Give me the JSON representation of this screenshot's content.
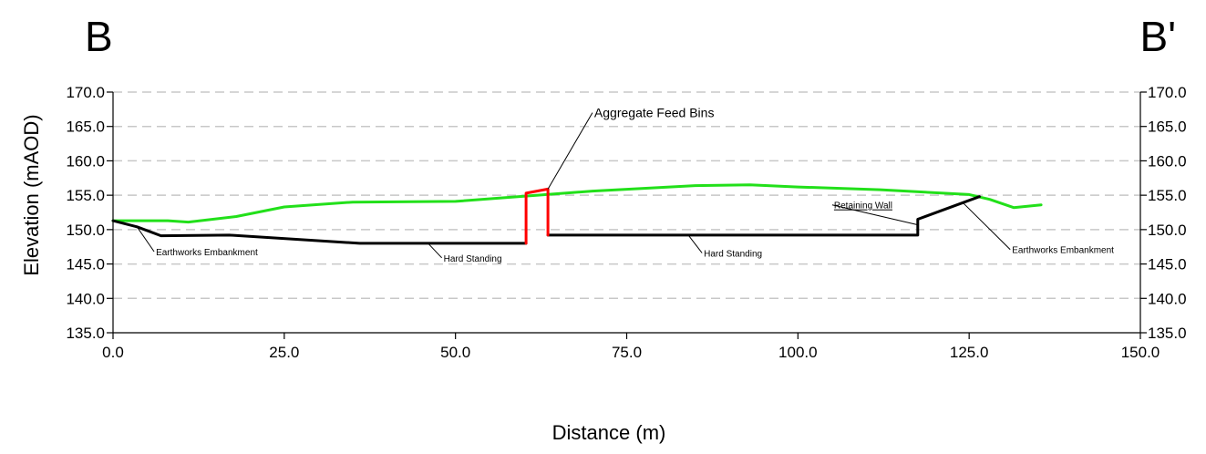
{
  "section": {
    "start_label": "B",
    "end_label": "B'"
  },
  "chart_data": {
    "type": "line",
    "xlabel": "Distance (m)",
    "ylabel": "Elevation (mAOD)",
    "xlim": [
      0,
      150
    ],
    "ylim": [
      135,
      170
    ],
    "x_ticks": [
      "0.0",
      "25.0",
      "50.0",
      "75.0",
      "100.0",
      "125.0",
      "150.0"
    ],
    "y_ticks": [
      "135.0",
      "140.0",
      "145.0",
      "150.0",
      "155.0",
      "160.0",
      "165.0",
      "170.0"
    ],
    "grid": "horizontal dashed",
    "series": [
      {
        "color": "#22e01a",
        "x": [
          0,
          8,
          11,
          18,
          25,
          35,
          50,
          62,
          70,
          85,
          93,
          100,
          112,
          125,
          128,
          131.5,
          135.5
        ],
        "y": [
          151.3,
          151.3,
          151.1,
          151.9,
          153.3,
          154.0,
          154.1,
          155.0,
          155.6,
          156.4,
          156.5,
          156.2,
          155.8,
          155.1,
          154.4,
          153.2,
          153.6
        ]
      },
      {
        "color": "#000000",
        "x": [
          0,
          3.5,
          7,
          17,
          36,
          60.3
        ],
        "y": [
          151.3,
          150.4,
          149.1,
          149.2,
          148.0,
          148.0
        ]
      },
      {
        "color": "#000000",
        "x": [
          63.5,
          117.5,
          117.5,
          126.5
        ],
        "y": [
          149.2,
          149.2,
          151.5,
          154.8
        ]
      },
      {
        "color": "#ff0000",
        "x": [
          60.3,
          60.3,
          63.5,
          63.5
        ],
        "y": [
          148.0,
          155.3,
          155.9,
          149.2
        ]
      }
    ],
    "annotations": [
      {
        "text": "Aggregate Feed Bins",
        "point": [
          63.5,
          155.9
        ],
        "label": [
          70,
          167
        ]
      },
      {
        "text": "Earthworks Embankment",
        "point": [
          3.5,
          150.4
        ],
        "label": [
          6,
          146.8
        ]
      },
      {
        "text": "Hard Standing",
        "point": [
          46,
          148.0
        ],
        "label": [
          48,
          145.9
        ]
      },
      {
        "text": "Hard Standing",
        "point": [
          84,
          149.2
        ],
        "label": [
          86,
          146.6
        ]
      },
      {
        "text": "Retaining Wall",
        "point": [
          117.5,
          150.7
        ],
        "label": [
          105,
          153.6
        ]
      },
      {
        "text": "Earthworks Embankment",
        "point": [
          124,
          154.0
        ],
        "label": [
          131,
          147.1
        ]
      }
    ]
  }
}
